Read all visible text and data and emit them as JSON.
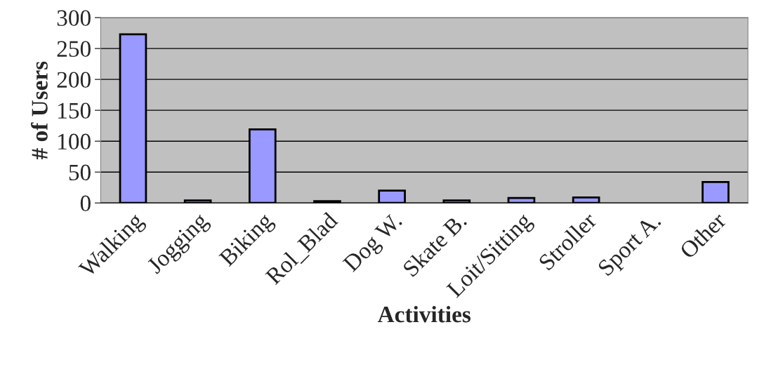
{
  "chart_data": {
    "type": "bar",
    "xlabel": "Activities",
    "ylabel": "# of Users",
    "categories": [
      "Walking",
      "Jogging",
      "Biking",
      "Rol_Blad",
      "Dog W.",
      "Skate B.",
      "Loit/Sitting",
      "Stroller",
      "Sport A.",
      "Other"
    ],
    "values": [
      273,
      4,
      119,
      3,
      20,
      4,
      8,
      9,
      null,
      34
    ],
    "color": "#9999ff",
    "ylim": [
      0,
      300
    ],
    "yticks": [
      0,
      50,
      100,
      150,
      200,
      250,
      300
    ],
    "grid": "y"
  }
}
